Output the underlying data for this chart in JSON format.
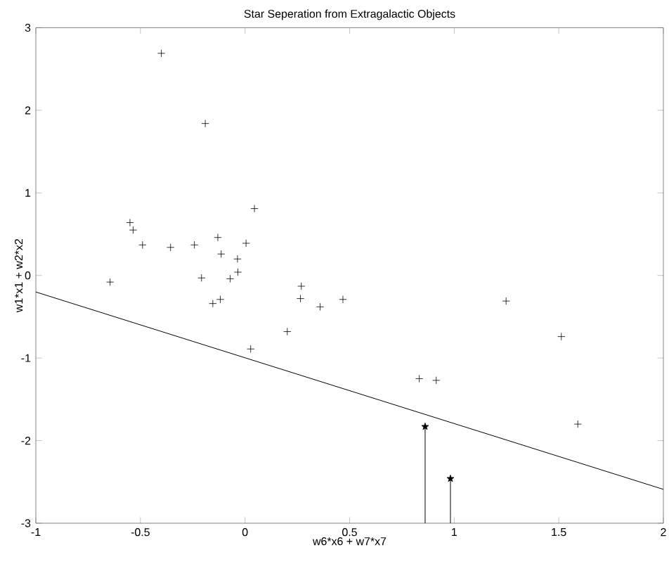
{
  "chart_data": {
    "type": "scatter",
    "title": "Star Seperation from Extragalactic Objects",
    "xlabel": "w6*x6 + w7*x7",
    "ylabel": "w1*x1 + w2*x2",
    "xlim": [
      -1,
      2
    ],
    "ylim": [
      -3,
      3
    ],
    "xticks": [
      -1,
      -0.5,
      0,
      0.5,
      1,
      1.5,
      2
    ],
    "yticks": [
      -3,
      -2,
      -1,
      0,
      1,
      2,
      3
    ],
    "grid": false,
    "series": [
      {
        "marker": "cross",
        "color": "#000000",
        "x": [
          -0.4,
          -0.19,
          0.045,
          -0.55,
          -0.535,
          -0.49,
          -0.356,
          -0.242,
          -0.13,
          0.005,
          -0.114,
          -0.036,
          -0.034,
          -0.071,
          -0.208,
          -0.645,
          -0.154,
          -0.118,
          0.269,
          0.265,
          0.202,
          0.027,
          0.359,
          0.468,
          0.833,
          0.914,
          1.248,
          1.512,
          1.591
        ],
        "values": [
          2.69,
          1.84,
          0.81,
          0.64,
          0.55,
          0.37,
          0.34,
          0.37,
          0.46,
          0.39,
          0.26,
          0.2,
          0.04,
          -0.04,
          -0.03,
          -0.08,
          -0.34,
          -0.29,
          -0.13,
          -0.28,
          -0.68,
          -0.89,
          -0.38,
          -0.29,
          -1.25,
          -1.27,
          -0.31,
          -0.74,
          -1.8
        ]
      },
      {
        "marker": "star",
        "color": "#000000",
        "x": [
          0.861,
          0.982
        ],
        "values": [
          -1.83,
          -2.46
        ],
        "errors": [
          [
            -3,
            -1.83
          ],
          [
            -3,
            -2.46
          ]
        ]
      },
      {
        "type": "line",
        "marker": "none",
        "line_style": "solid",
        "color": "#000000",
        "x": [
          -1,
          2
        ],
        "values": [
          -0.2,
          -2.59
        ]
      }
    ]
  }
}
